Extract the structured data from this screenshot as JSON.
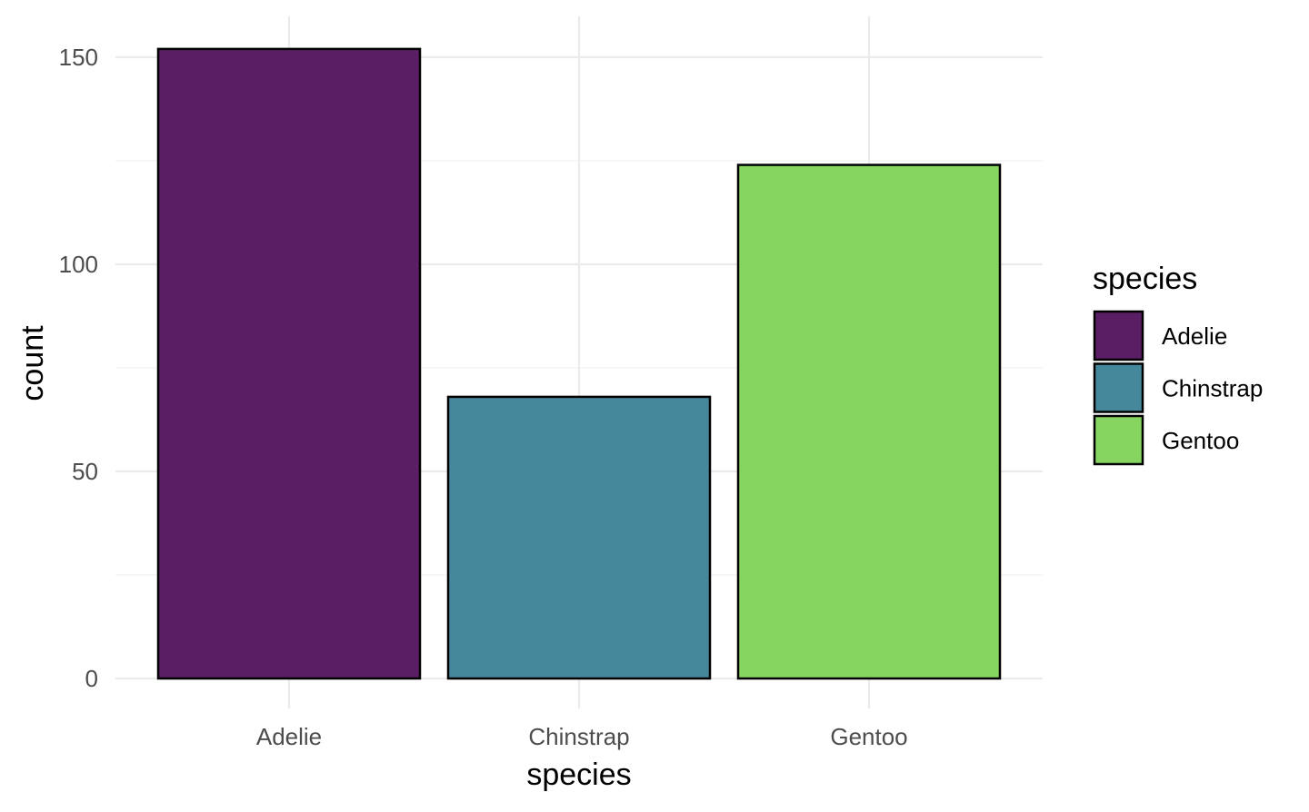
{
  "chart_data": {
    "type": "bar",
    "categories": [
      "Adelie",
      "Chinstrap",
      "Gentoo"
    ],
    "values": [
      152,
      68,
      124
    ],
    "colors": [
      "#5a1e64",
      "#46889b",
      "#86d561"
    ],
    "xlabel": "species",
    "ylabel": "count",
    "ylim": [
      0,
      160
    ],
    "yticks": [
      0,
      50,
      100,
      150
    ],
    "grid": true,
    "legend": {
      "title": "species",
      "position": "right",
      "entries": [
        "Adelie",
        "Chinstrap",
        "Gentoo"
      ]
    }
  }
}
